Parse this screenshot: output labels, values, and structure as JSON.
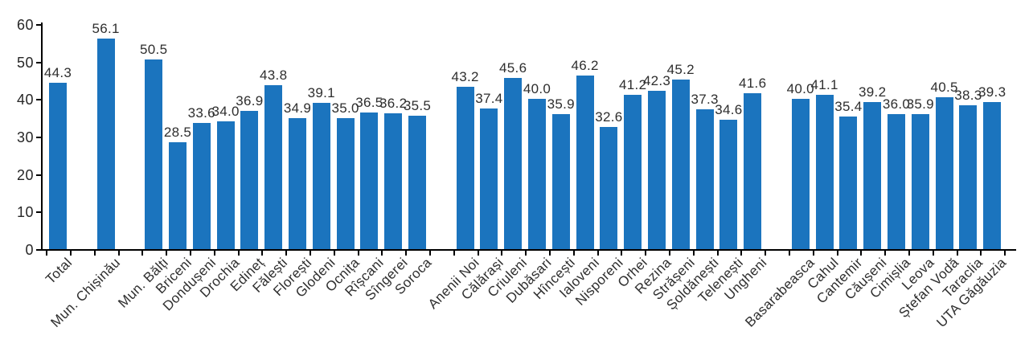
{
  "chart_data": {
    "type": "bar",
    "title": "",
    "xlabel": "",
    "ylabel": "",
    "ylim": [
      0,
      60
    ],
    "yticks": [
      "0",
      "10",
      "20",
      "30",
      "40",
      "50",
      "60"
    ],
    "grid": false,
    "legend": "none",
    "bar_color": "#1B74BE",
    "axis_color": "#000000",
    "text_color": "#2e2e2e",
    "value_label_decimals": 1,
    "slot_count": 40,
    "points": [
      {
        "label": "Total",
        "value": 44.3,
        "slot": 0
      },
      {
        "label": "Mun. Chișinău",
        "value": 56.1,
        "slot": 2
      },
      {
        "label": "Mun. Bălți",
        "value": 50.5,
        "slot": 4
      },
      {
        "label": "Briceni",
        "value": 28.5,
        "slot": 5
      },
      {
        "label": "Dondușeni",
        "value": 33.6,
        "slot": 6
      },
      {
        "label": "Drochia",
        "value": 34.0,
        "slot": 7
      },
      {
        "label": "Edineț",
        "value": 36.9,
        "slot": 8
      },
      {
        "label": "Fălești",
        "value": 43.8,
        "slot": 9
      },
      {
        "label": "Florești",
        "value": 34.9,
        "slot": 10
      },
      {
        "label": "Glodeni",
        "value": 39.1,
        "slot": 11
      },
      {
        "label": "Ocnița",
        "value": 35.0,
        "slot": 12
      },
      {
        "label": "Rîșcani",
        "value": 36.5,
        "slot": 13
      },
      {
        "label": "Sîngerei",
        "value": 36.2,
        "slot": 14
      },
      {
        "label": "Soroca",
        "value": 35.5,
        "slot": 15
      },
      {
        "label": "Anenii Noi",
        "value": 43.2,
        "slot": 17
      },
      {
        "label": "Călărași",
        "value": 37.4,
        "slot": 18
      },
      {
        "label": "Criuleni",
        "value": 45.6,
        "slot": 19
      },
      {
        "label": "Dubăsari",
        "value": 40.0,
        "slot": 20
      },
      {
        "label": "Hîncești",
        "value": 35.9,
        "slot": 21
      },
      {
        "label": "Ialoveni",
        "value": 46.2,
        "slot": 22
      },
      {
        "label": "Nisporeni",
        "value": 32.6,
        "slot": 23
      },
      {
        "label": "Orhei",
        "value": 41.2,
        "slot": 24
      },
      {
        "label": "Rezina",
        "value": 42.3,
        "slot": 25
      },
      {
        "label": "Strășeni",
        "value": 45.2,
        "slot": 26
      },
      {
        "label": "Șoldănești",
        "value": 37.3,
        "slot": 27
      },
      {
        "label": "Telenești",
        "value": 34.6,
        "slot": 28
      },
      {
        "label": "Ungheni",
        "value": 41.6,
        "slot": 29
      },
      {
        "label": "Basarabeasca",
        "value": 40.0,
        "slot": 31
      },
      {
        "label": "Cahul",
        "value": 41.1,
        "slot": 32
      },
      {
        "label": "Cantemir",
        "value": 35.4,
        "slot": 33
      },
      {
        "label": "Căușeni",
        "value": 39.2,
        "slot": 34
      },
      {
        "label": "Cimișlia",
        "value": 36.0,
        "slot": 35
      },
      {
        "label": "Leova",
        "value": 35.9,
        "slot": 36
      },
      {
        "label": "Ștefan Vodă",
        "value": 40.5,
        "slot": 37
      },
      {
        "label": "Taraclia",
        "value": 38.3,
        "slot": 38
      },
      {
        "label": "UTA Găgăuzia",
        "value": 39.3,
        "slot": 39
      }
    ]
  }
}
